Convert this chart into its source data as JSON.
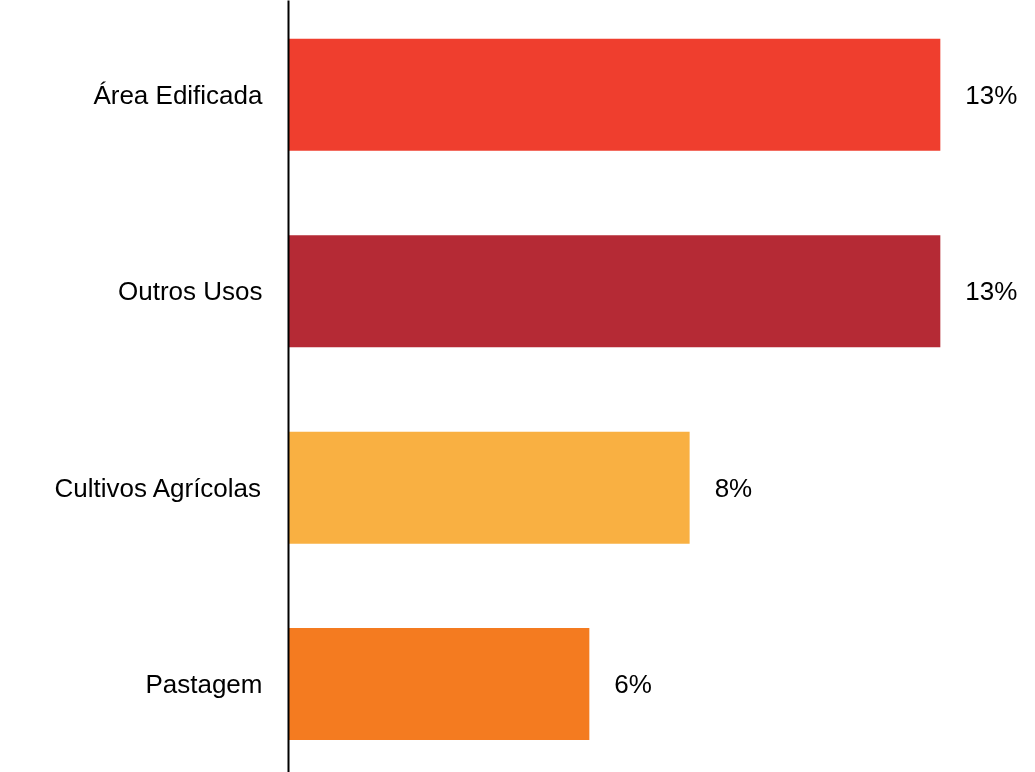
{
  "chart_data": {
    "type": "bar",
    "orientation": "horizontal",
    "categories": [
      "Área Edificada",
      "Outros Usos",
      "Cultivos Agrícolas",
      "Pastagem"
    ],
    "values": [
      13,
      13,
      8,
      6
    ],
    "colors": [
      "#ef3e2e",
      "#b52a35",
      "#f9b042",
      "#f47b20"
    ],
    "value_labels": [
      "13%",
      "13%",
      "8%",
      "6%"
    ],
    "tick_labels": "y"
  }
}
